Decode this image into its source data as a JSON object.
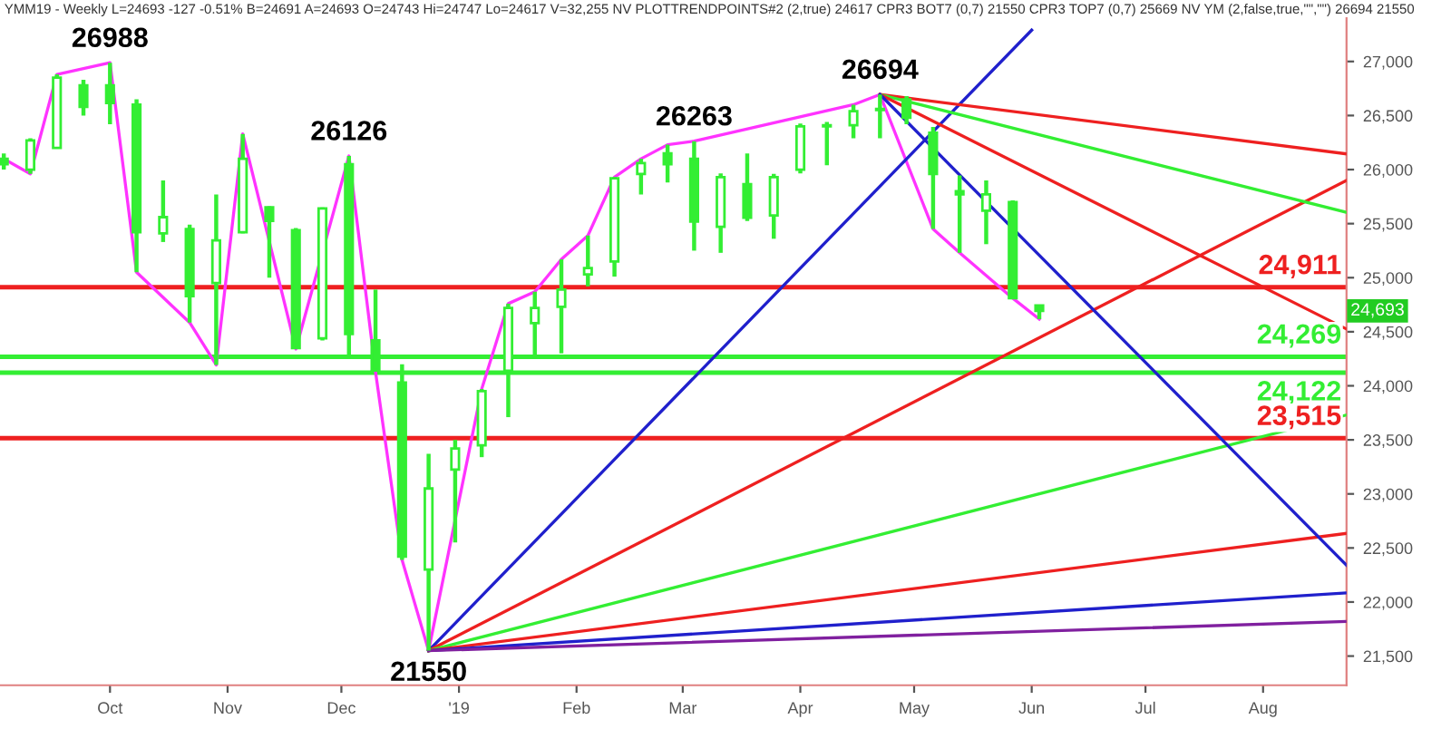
{
  "chart_data": {
    "type": "candlestick",
    "x": [
      "2018-09-03",
      "2018-09-10",
      "2018-09-17",
      "2018-09-24",
      "2018-10-01",
      "2018-10-08",
      "2018-10-15",
      "2018-10-22",
      "2018-10-29",
      "2018-11-05",
      "2018-11-12",
      "2018-11-19",
      "2018-11-26",
      "2018-12-03",
      "2018-12-10",
      "2018-12-17",
      "2018-12-24",
      "2018-12-31",
      "2019-01-07",
      "2019-01-14",
      "2019-01-21",
      "2019-01-28",
      "2019-02-04",
      "2019-02-11",
      "2019-02-18",
      "2019-02-25",
      "2019-03-04",
      "2019-03-11",
      "2019-03-18",
      "2019-03-25",
      "2019-04-01",
      "2019-04-08",
      "2019-04-15",
      "2019-04-22",
      "2019-04-29",
      "2019-05-06",
      "2019-05-13",
      "2019-05-20",
      "2019-05-27",
      "2019-06-03"
    ],
    "ohlc": [
      [
        26100,
        26150,
        26000,
        26050
      ],
      [
        26000,
        26290,
        25960,
        26270
      ],
      [
        26200,
        26880,
        26195,
        26850
      ],
      [
        26780,
        26830,
        26500,
        26580
      ],
      [
        26780,
        26988,
        26420,
        26615
      ],
      [
        26600,
        26650,
        25050,
        25420
      ],
      [
        25410,
        25900,
        25330,
        25560
      ],
      [
        25450,
        25490,
        24585,
        24830
      ],
      [
        24950,
        25770,
        24193,
        25345
      ],
      [
        25420,
        26330,
        25410,
        26100
      ],
      [
        25650,
        25660,
        25000,
        25525
      ],
      [
        25440,
        25460,
        24340,
        24350
      ],
      [
        24440,
        25650,
        24420,
        25640
      ],
      [
        26050,
        26126,
        24270,
        24480
      ],
      [
        24420,
        24890,
        24130,
        24150
      ],
      [
        24030,
        24200,
        22390,
        22420
      ],
      [
        22300,
        23370,
        21550,
        23050
      ],
      [
        23225,
        23500,
        22550,
        23420
      ],
      [
        23450,
        23970,
        23340,
        23950
      ],
      [
        24140,
        24760,
        23710,
        24720
      ],
      [
        24580,
        24870,
        24250,
        24720
      ],
      [
        24730,
        25170,
        24300,
        24890
      ],
      [
        25030,
        25390,
        24920,
        25090
      ],
      [
        25150,
        25930,
        25010,
        25920
      ],
      [
        25960,
        26100,
        25770,
        26060
      ],
      [
        26150,
        26230,
        25880,
        26050
      ],
      [
        26100,
        26263,
        25250,
        25520
      ],
      [
        25470,
        25965,
        25230,
        25930
      ],
      [
        25865,
        26150,
        25525,
        25555
      ],
      [
        25575,
        25960,
        25360,
        25930
      ],
      [
        26000,
        26425,
        25965,
        26400
      ],
      [
        26400,
        26440,
        26040,
        26410
      ],
      [
        26410,
        26600,
        26290,
        26540
      ],
      [
        26550,
        26694,
        26290,
        26560
      ],
      [
        26650,
        26680,
        26420,
        26480
      ],
      [
        26340,
        26395,
        25450,
        25960
      ],
      [
        25800,
        25945,
        25230,
        25770
      ],
      [
        25620,
        25900,
        25310,
        25770
      ],
      [
        25700,
        25715,
        24810,
        24810
      ],
      [
        24743,
        24747,
        24617,
        24693
      ]
    ],
    "color": "#33ee33",
    "series": [
      {
        "type": "line",
        "color": "#ff33ff",
        "x": [
          "2018-09-03",
          "2018-09-10",
          "2018-09-17",
          "2018-10-01",
          "2018-10-08",
          "2018-10-22",
          "2018-10-29",
          "2018-11-05",
          "2018-11-19",
          "2018-12-03",
          "2018-12-10",
          "2018-12-17",
          "2018-12-24",
          "2019-01-07",
          "2019-01-14",
          "2019-01-21",
          "2019-01-28",
          "2019-02-04",
          "2019-02-11",
          "2019-02-18",
          "2019-02-25",
          "2019-03-04",
          "2019-04-15",
          "2019-04-22",
          "2019-05-06",
          "2019-05-13",
          "2019-05-27",
          "2019-06-03"
        ],
        "values": [
          26100,
          25960,
          26880,
          26988,
          25050,
          24585,
          24193,
          26330,
          24340,
          26126,
          24130,
          22390,
          21550,
          23970,
          24760,
          24870,
          25170,
          25390,
          25930,
          26100,
          26230,
          26263,
          26600,
          26694,
          25450,
          25230,
          24810,
          24617
        ]
      },
      {
        "type": "line",
        "color": "#2020cc",
        "x": [
          "2018-12-24",
          "2019-06-01"
        ],
        "values": [
          21550,
          27290
        ]
      },
      {
        "type": "line",
        "color": "#ee2020",
        "x": [
          "2018-12-24",
          "2019-08-23"
        ],
        "values": [
          21550,
          25900
        ]
      },
      {
        "type": "line",
        "color": "#33ee33",
        "x": [
          "2018-12-24",
          "2019-08-23"
        ],
        "values": [
          21550,
          23730
        ]
      },
      {
        "type": "line",
        "color": "#ee2020",
        "x": [
          "2018-12-24",
          "2019-08-23"
        ],
        "values": [
          21550,
          22635
        ]
      },
      {
        "type": "line",
        "color": "#2020cc",
        "x": [
          "2018-12-24",
          "2019-08-23"
        ],
        "values": [
          21550,
          22085
        ]
      },
      {
        "type": "line",
        "color": "#80209f",
        "x": [
          "2018-12-24",
          "2019-08-23"
        ],
        "values": [
          21550,
          21820
        ]
      },
      {
        "type": "line",
        "color": "#ee2020",
        "x": [
          "2019-04-22",
          "2019-08-23"
        ],
        "values": [
          26694,
          26145
        ]
      },
      {
        "type": "line",
        "color": "#33ee33",
        "x": [
          "2019-04-22",
          "2019-08-23"
        ],
        "values": [
          26694,
          25605
        ]
      },
      {
        "type": "line",
        "color": "#ee2020",
        "x": [
          "2019-04-22",
          "2019-08-23"
        ],
        "values": [
          26694,
          24525
        ]
      },
      {
        "type": "line",
        "color": "#2020cc",
        "x": [
          "2019-04-22",
          "2019-08-23"
        ],
        "values": [
          26694,
          22340
        ]
      }
    ],
    "ref_lines": [
      {
        "axis": "y",
        "value": 24911,
        "label": "24,911",
        "color": "#ee2020"
      },
      {
        "axis": "y",
        "value": 24269,
        "label": "24,269",
        "color": "#33ee33"
      },
      {
        "axis": "y",
        "value": 24122,
        "label": "24,122",
        "color": "#33ee33"
      },
      {
        "axis": "y",
        "value": 23515,
        "label": "23,515",
        "color": "#ee2020"
      }
    ],
    "annotations": [
      "YMM19 - Weekly L=24693 -127 -0.51% B=24691 A=24693 O=24743 Hi=24747 Lo=24617 V=32,255 NV PLOTTRENDPOINTS#2 (2,true) 24617 CPR3 BOT7 (0,7) 21550 CPR3 TOP7 (0,7) 25669 NV YM (2,false,true,\"\",\"\") 26694 21550",
      {
        "text": "26988",
        "x": "2018-10-01",
        "y": 26988
      },
      {
        "text": "26126",
        "x": "2018-12-03",
        "y": 26126
      },
      {
        "text": "26263",
        "x": "2019-03-04",
        "y": 26263
      },
      {
        "text": "26694",
        "x": "2019-04-22",
        "y": 26694
      },
      {
        "text": "21550",
        "x": "2018-12-24",
        "y": 21550
      },
      "24,693"
    ],
    "xlim": [
      "2018-09-02",
      "2019-08-23"
    ],
    "xticks": [
      {
        "value": "2018-10-01",
        "label": "Oct"
      },
      {
        "value": "2018-11-01",
        "label": "Nov"
      },
      {
        "value": "2018-12-01",
        "label": "Dec"
      },
      {
        "value": "2019-01-01",
        "label": "'19"
      },
      {
        "value": "2019-02-01",
        "label": "Feb"
      },
      {
        "value": "2019-03-01",
        "label": "Mar"
      },
      {
        "value": "2019-04-01",
        "label": "Apr"
      },
      {
        "value": "2019-05-01",
        "label": "May"
      },
      {
        "value": "2019-06-01",
        "label": "Jun"
      },
      {
        "value": "2019-07-01",
        "label": "Jul"
      },
      {
        "value": "2019-08-01",
        "label": "Aug"
      }
    ],
    "ylim": [
      21230,
      27400
    ],
    "yticks": [
      {
        "value": 21500,
        "label": "21,500"
      },
      {
        "value": 22000,
        "label": "22,000"
      },
      {
        "value": 22500,
        "label": "22,500"
      },
      {
        "value": 23000,
        "label": "23,000"
      },
      {
        "value": 23500,
        "label": "23,500"
      },
      {
        "value": 24000,
        "label": "24,000"
      },
      {
        "value": 24500,
        "label": "24,500"
      },
      {
        "value": 25000,
        "label": "25,000"
      },
      {
        "value": 25500,
        "label": "25,500"
      },
      {
        "value": 26000,
        "label": "26,000"
      },
      {
        "value": 26500,
        "label": "26,500"
      },
      {
        "value": 27000,
        "label": "27,000"
      }
    ],
    "grid": false,
    "legend": false
  }
}
